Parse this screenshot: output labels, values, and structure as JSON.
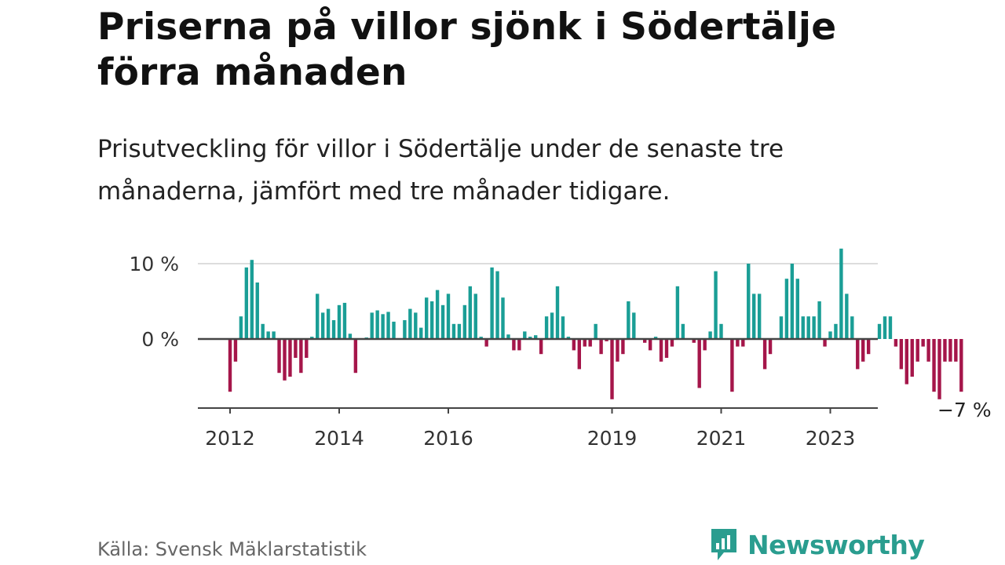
{
  "header": {
    "title": "Priserna på villor sjönk i Södertälje förra månaden",
    "subtitle": "Prisutveckling för villor i Södertälje under de senaste tre månaderna, jämfört med tre månader tidigare."
  },
  "footer": {
    "source": "Källa: Svensk Mäklarstatistik",
    "brand": "Newsworthy",
    "logo_icon": "newsworthy-logo-icon"
  },
  "colors": {
    "positive": "#1a9e96",
    "negative": "#a5164a",
    "grid": "#dddddd",
    "axis": "#444444",
    "brand": "#2a9d8f"
  },
  "chart_data": {
    "type": "bar",
    "title": "Priserna på villor sjönk i Södertälje förra månaden",
    "ylabel": "",
    "xlabel": "",
    "ylim": [
      -9,
      12
    ],
    "unit": "%",
    "y_ticks": [
      {
        "value": 10,
        "label": "10 %"
      },
      {
        "value": 0,
        "label": "0 %"
      }
    ],
    "x_ticks": [
      {
        "index": 0,
        "label": "2012"
      },
      {
        "index": 20,
        "label": "2014"
      },
      {
        "index": 40,
        "label": "2016"
      },
      {
        "index": 70,
        "label": "2019"
      },
      {
        "index": 90,
        "label": "2021"
      },
      {
        "index": 110,
        "label": "2023"
      }
    ],
    "last_value_label": "−7 %",
    "start": "2012-01",
    "values": [
      -7.0,
      -3.0,
      3.0,
      9.5,
      10.5,
      7.5,
      2.0,
      1.0,
      1.0,
      -4.5,
      -5.5,
      -5.0,
      -2.5,
      -4.5,
      -2.5,
      0.3,
      6.0,
      3.5,
      4.0,
      2.5,
      4.5,
      4.8,
      0.7,
      -4.5,
      0.0,
      0.2,
      3.5,
      3.8,
      3.3,
      3.6,
      2.3,
      0.0,
      2.5,
      4.0,
      3.5,
      1.5,
      5.5,
      5.0,
      6.5,
      4.5,
      6.0,
      2.0,
      2.0,
      4.5,
      7.0,
      6.0,
      0.3,
      -1.0,
      9.5,
      9.0,
      5.5,
      0.6,
      -1.5,
      -1.5,
      1.0,
      0.3,
      0.5,
      -2.0,
      3.0,
      3.5,
      7.0,
      3.0,
      0.3,
      -1.5,
      -4.0,
      -1.0,
      -1.0,
      2.0,
      -2.0,
      -0.3,
      -8.0,
      -3.0,
      -2.0,
      5.0,
      3.5,
      0.0,
      -0.5,
      -1.5,
      0.3,
      -3.0,
      -2.5,
      -1.0,
      7.0,
      2.0,
      0.0,
      -0.5,
      -6.5,
      -1.5,
      1.0,
      9.0,
      2.0,
      0.0,
      -7.0,
      -1.0,
      -1.0,
      10.0,
      6.0,
      6.0,
      -4.0,
      -2.0,
      0.0,
      3.0,
      8.0,
      10.0,
      8.0,
      3.0,
      3.0,
      3.0,
      5.0,
      -1.0,
      1.0,
      2.0,
      12.0,
      6.0,
      3.0,
      -4.0,
      -3.0,
      -2.0,
      0.0,
      2.0,
      3.0,
      3.0,
      -1.0,
      -4.0,
      -6.0,
      -5.0,
      -3.0,
      -1.0,
      -3.0,
      -7.0,
      -8.0,
      -3.0,
      -3.0,
      -3.0,
      -7.0
    ]
  }
}
